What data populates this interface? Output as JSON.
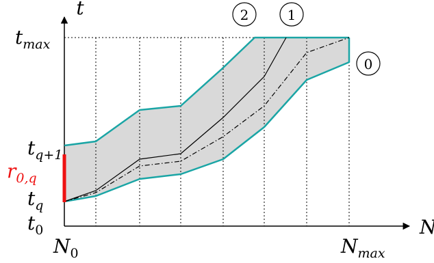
{
  "labels": {
    "axis_t": "t",
    "axis_N": "N",
    "t_max": {
      "base": "t",
      "sub": "max"
    },
    "t_q1": {
      "base": "t",
      "sub": "q+1"
    },
    "r_0q": {
      "base": "r",
      "sub": "0,q"
    },
    "t_q": {
      "base": "t",
      "sub": "q"
    },
    "t_0": {
      "base": "t",
      "sub": "0"
    },
    "N_0": {
      "base": "N",
      "sub": "0"
    },
    "N_max": {
      "base": "N",
      "sub": "max"
    },
    "circle_2": "2",
    "circle_1": "1",
    "circle_0": "0"
  },
  "colors": {
    "band_fill": "#d9d9d9",
    "band_edge": "#1aa5a5",
    "interval_marker": "#ee1111",
    "interval_label": "#ee1111",
    "line": "#000000"
  }
}
